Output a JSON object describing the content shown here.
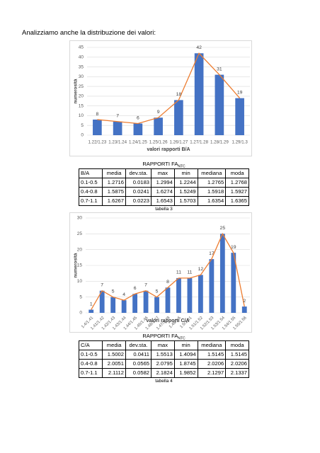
{
  "intro": "Analizziamo anche la distribuzione dei valori:",
  "chart_data": [
    {
      "type": "bar",
      "y_label": "numerosità",
      "x_label": "valori rapporti B/A",
      "categories": [
        "1.22/1.23",
        "1.23/1.24",
        "1.24/1.25",
        "1.25/1.26",
        "1.26/1.27",
        "1.27/1.28",
        "1.28/1.29",
        "1.29/1.3"
      ],
      "values": [
        8,
        7,
        6,
        9,
        18,
        42,
        31,
        19
      ],
      "color": "#4472c4",
      "line_color": "#ed7d31",
      "ylim": [
        0,
        45
      ],
      "yticks": [
        0,
        5,
        10,
        15,
        20,
        25,
        30,
        35,
        40,
        45
      ],
      "grid": true
    },
    {
      "type": "bar",
      "y_label": "numerosità",
      "x_label": "valori rapporti C/A",
      "categories": [
        "1.4/1.41",
        "1.41/1.42",
        "1.42/1.43",
        "1.43/1.44",
        "1.44/1.45",
        "1.45/1.46",
        "1.46/1.47",
        "1.47/1.48",
        "1.48/1.5",
        "1.5/1.51",
        "1.51/1.52",
        "1.52/1.53",
        "1.53/1.54",
        "1.54/1.55",
        "1.55/1.56"
      ],
      "values": [
        1,
        7,
        5,
        4,
        6,
        7,
        5,
        8,
        11,
        11,
        12,
        17,
        25,
        19,
        2
      ],
      "color": "#4472c4",
      "line_color": "#ed7d31",
      "ylim": [
        0,
        30
      ],
      "yticks": [
        0,
        5,
        10,
        15,
        20,
        25,
        30
      ],
      "grid": true
    }
  ],
  "tables": [
    {
      "title": "RAPPORTI FA",
      "title_sub": "NTC",
      "header": [
        "B/A",
        "media",
        "dev.sta.",
        "max",
        "min",
        "mediana",
        "moda"
      ],
      "rows": [
        [
          "0.1-0.5",
          "1.2716",
          "0.0183",
          "1.2994",
          "1.2244",
          "1.2765",
          "1.2768"
        ],
        [
          "0.4-0.8",
          "1.5875",
          "0.0241",
          "1.6274",
          "1.5249",
          "1.5918",
          "1.5927"
        ],
        [
          "0.7-1.1",
          "1.6267",
          "0.0223",
          "1.6543",
          "1.5703",
          "1.6354",
          "1.6365"
        ]
      ],
      "caption": "tabella 3"
    },
    {
      "title": "RAPPORTI FA",
      "title_sub": "NTC",
      "header": [
        "C/A",
        "media",
        "dev.sta.",
        "max",
        "min",
        "mediana",
        "moda"
      ],
      "rows": [
        [
          "0.1-0.5",
          "1.5002",
          "0.0411",
          "1.5513",
          "1.4094",
          "1.5145",
          "1.5145"
        ],
        [
          "0.4-0.8",
          "2.0051",
          "0.0565",
          "2.0795",
          "1.8745",
          "2.0206",
          "2.0206"
        ],
        [
          "0.7-1.1",
          "2.1112",
          "0.0582",
          "2.1824",
          "1.9852",
          "2.1297",
          "2.1337"
        ]
      ],
      "caption": "tabella 4"
    }
  ]
}
